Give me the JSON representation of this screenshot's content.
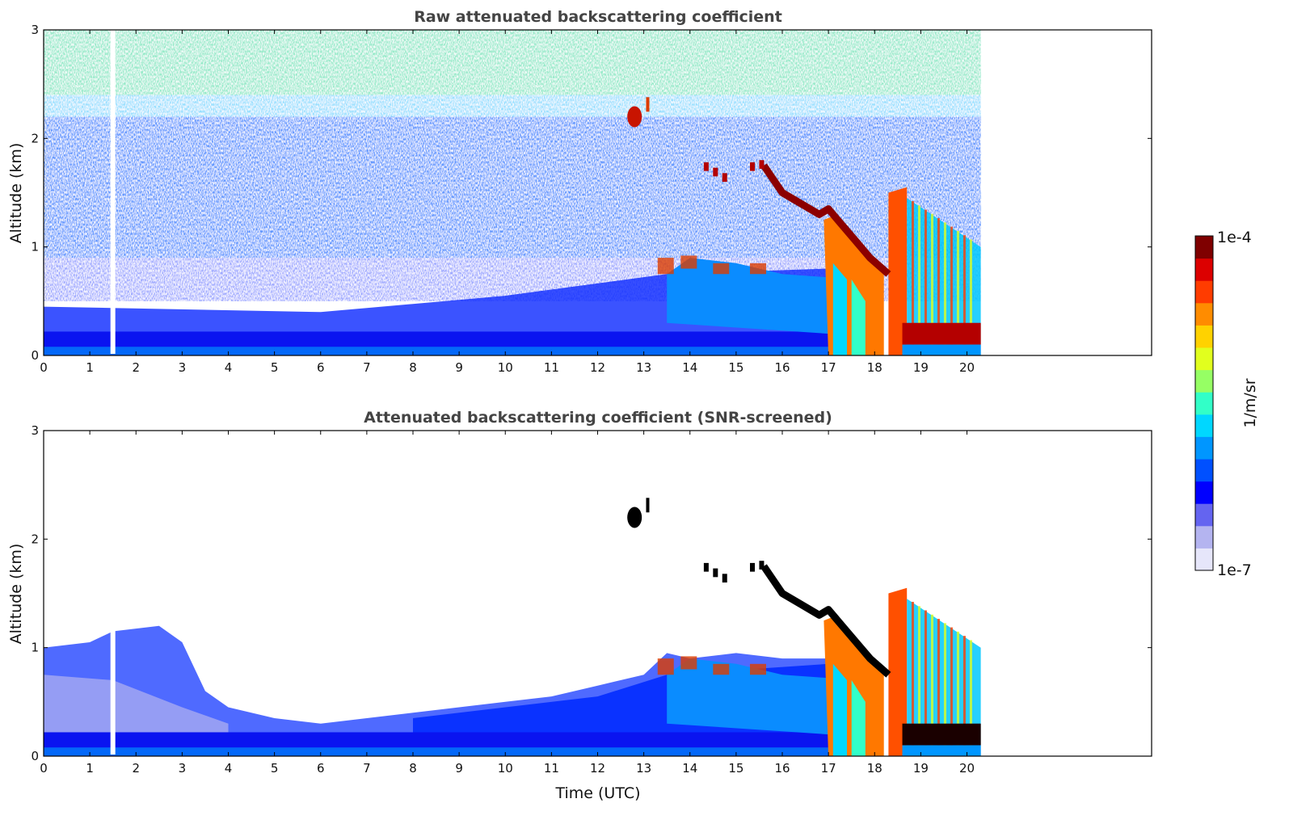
{
  "chart_data": [
    {
      "type": "heatmap",
      "title": "Raw attenuated backscattering coefficient",
      "xlabel": "",
      "ylabel": "Altitude (km)",
      "xlim": [
        0,
        24
      ],
      "ylim": [
        0,
        3
      ],
      "xticks": [
        "0",
        "1",
        "2",
        "3",
        "4",
        "5",
        "6",
        "7",
        "8",
        "9",
        "10",
        "11",
        "12",
        "13",
        "14",
        "15",
        "16",
        "17",
        "18",
        "19",
        "20"
      ],
      "yticks": [
        "0",
        "1",
        "2",
        "3"
      ],
      "data_end_time": 20.3,
      "gap_time": 1.5,
      "features": [
        {
          "name": "boundary layer aerosol",
          "t_start": 0,
          "t_end": 17,
          "alt_top": 0.35,
          "level": "low"
        },
        {
          "name": "elevated aerosol layer",
          "t_start": 13.5,
          "t_end": 17,
          "alt_top": 0.75,
          "level": "medium"
        },
        {
          "name": "cloud base (descending)",
          "t_start": 15.6,
          "t_end": 18.3,
          "alt_start": 1.75,
          "alt_end": 0.75,
          "level": "high"
        },
        {
          "name": "isolated cloud",
          "t": 12.8,
          "alt": 2.2,
          "level": "high"
        },
        {
          "name": "precipitation / cloud columns",
          "t_start": 17,
          "t_end": 20.3,
          "alt_top": 1.5,
          "level": "high"
        }
      ]
    },
    {
      "type": "heatmap",
      "title": "Attenuated backscattering coefficient (SNR-screened)",
      "xlabel": "Time (UTC)",
      "ylabel": "Altitude (km)",
      "xlim": [
        0,
        24
      ],
      "ylim": [
        0,
        3
      ],
      "xticks": [
        "0",
        "1",
        "2",
        "3",
        "4",
        "5",
        "6",
        "7",
        "8",
        "9",
        "10",
        "11",
        "12",
        "13",
        "14",
        "15",
        "16",
        "17",
        "18",
        "19",
        "20"
      ],
      "yticks": [
        "0",
        "1",
        "2",
        "3"
      ],
      "data_end_time": 20.3,
      "gap_time": 1.5,
      "boundary_layer_top": [
        [
          0,
          1.0
        ],
        [
          1,
          1.05
        ],
        [
          1.5,
          1.15
        ],
        [
          2.5,
          1.2
        ],
        [
          3,
          1.05
        ],
        [
          3.5,
          0.6
        ],
        [
          4,
          0.45
        ],
        [
          5,
          0.35
        ],
        [
          6,
          0.3
        ],
        [
          7,
          0.35
        ],
        [
          8,
          0.4
        ],
        [
          9,
          0.45
        ],
        [
          10,
          0.5
        ],
        [
          11,
          0.55
        ],
        [
          12,
          0.65
        ],
        [
          13,
          0.75
        ],
        [
          13.5,
          0.95
        ],
        [
          14,
          0.9
        ],
        [
          15,
          0.95
        ],
        [
          16,
          0.9
        ],
        [
          17,
          0.9
        ]
      ]
    }
  ],
  "colorbar": {
    "max_label": "1e-4",
    "min_label": "1e-7",
    "unit_label": "1/m/sr",
    "colors": [
      "#e6e6fa",
      "#b4b4f0",
      "#6464f0",
      "#0000ff",
      "#0050ff",
      "#0096ff",
      "#00d7ff",
      "#32ffc8",
      "#96ff64",
      "#e1ff1e",
      "#ffd200",
      "#ff8c00",
      "#ff3c00",
      "#dc0000",
      "#7f0000"
    ]
  }
}
